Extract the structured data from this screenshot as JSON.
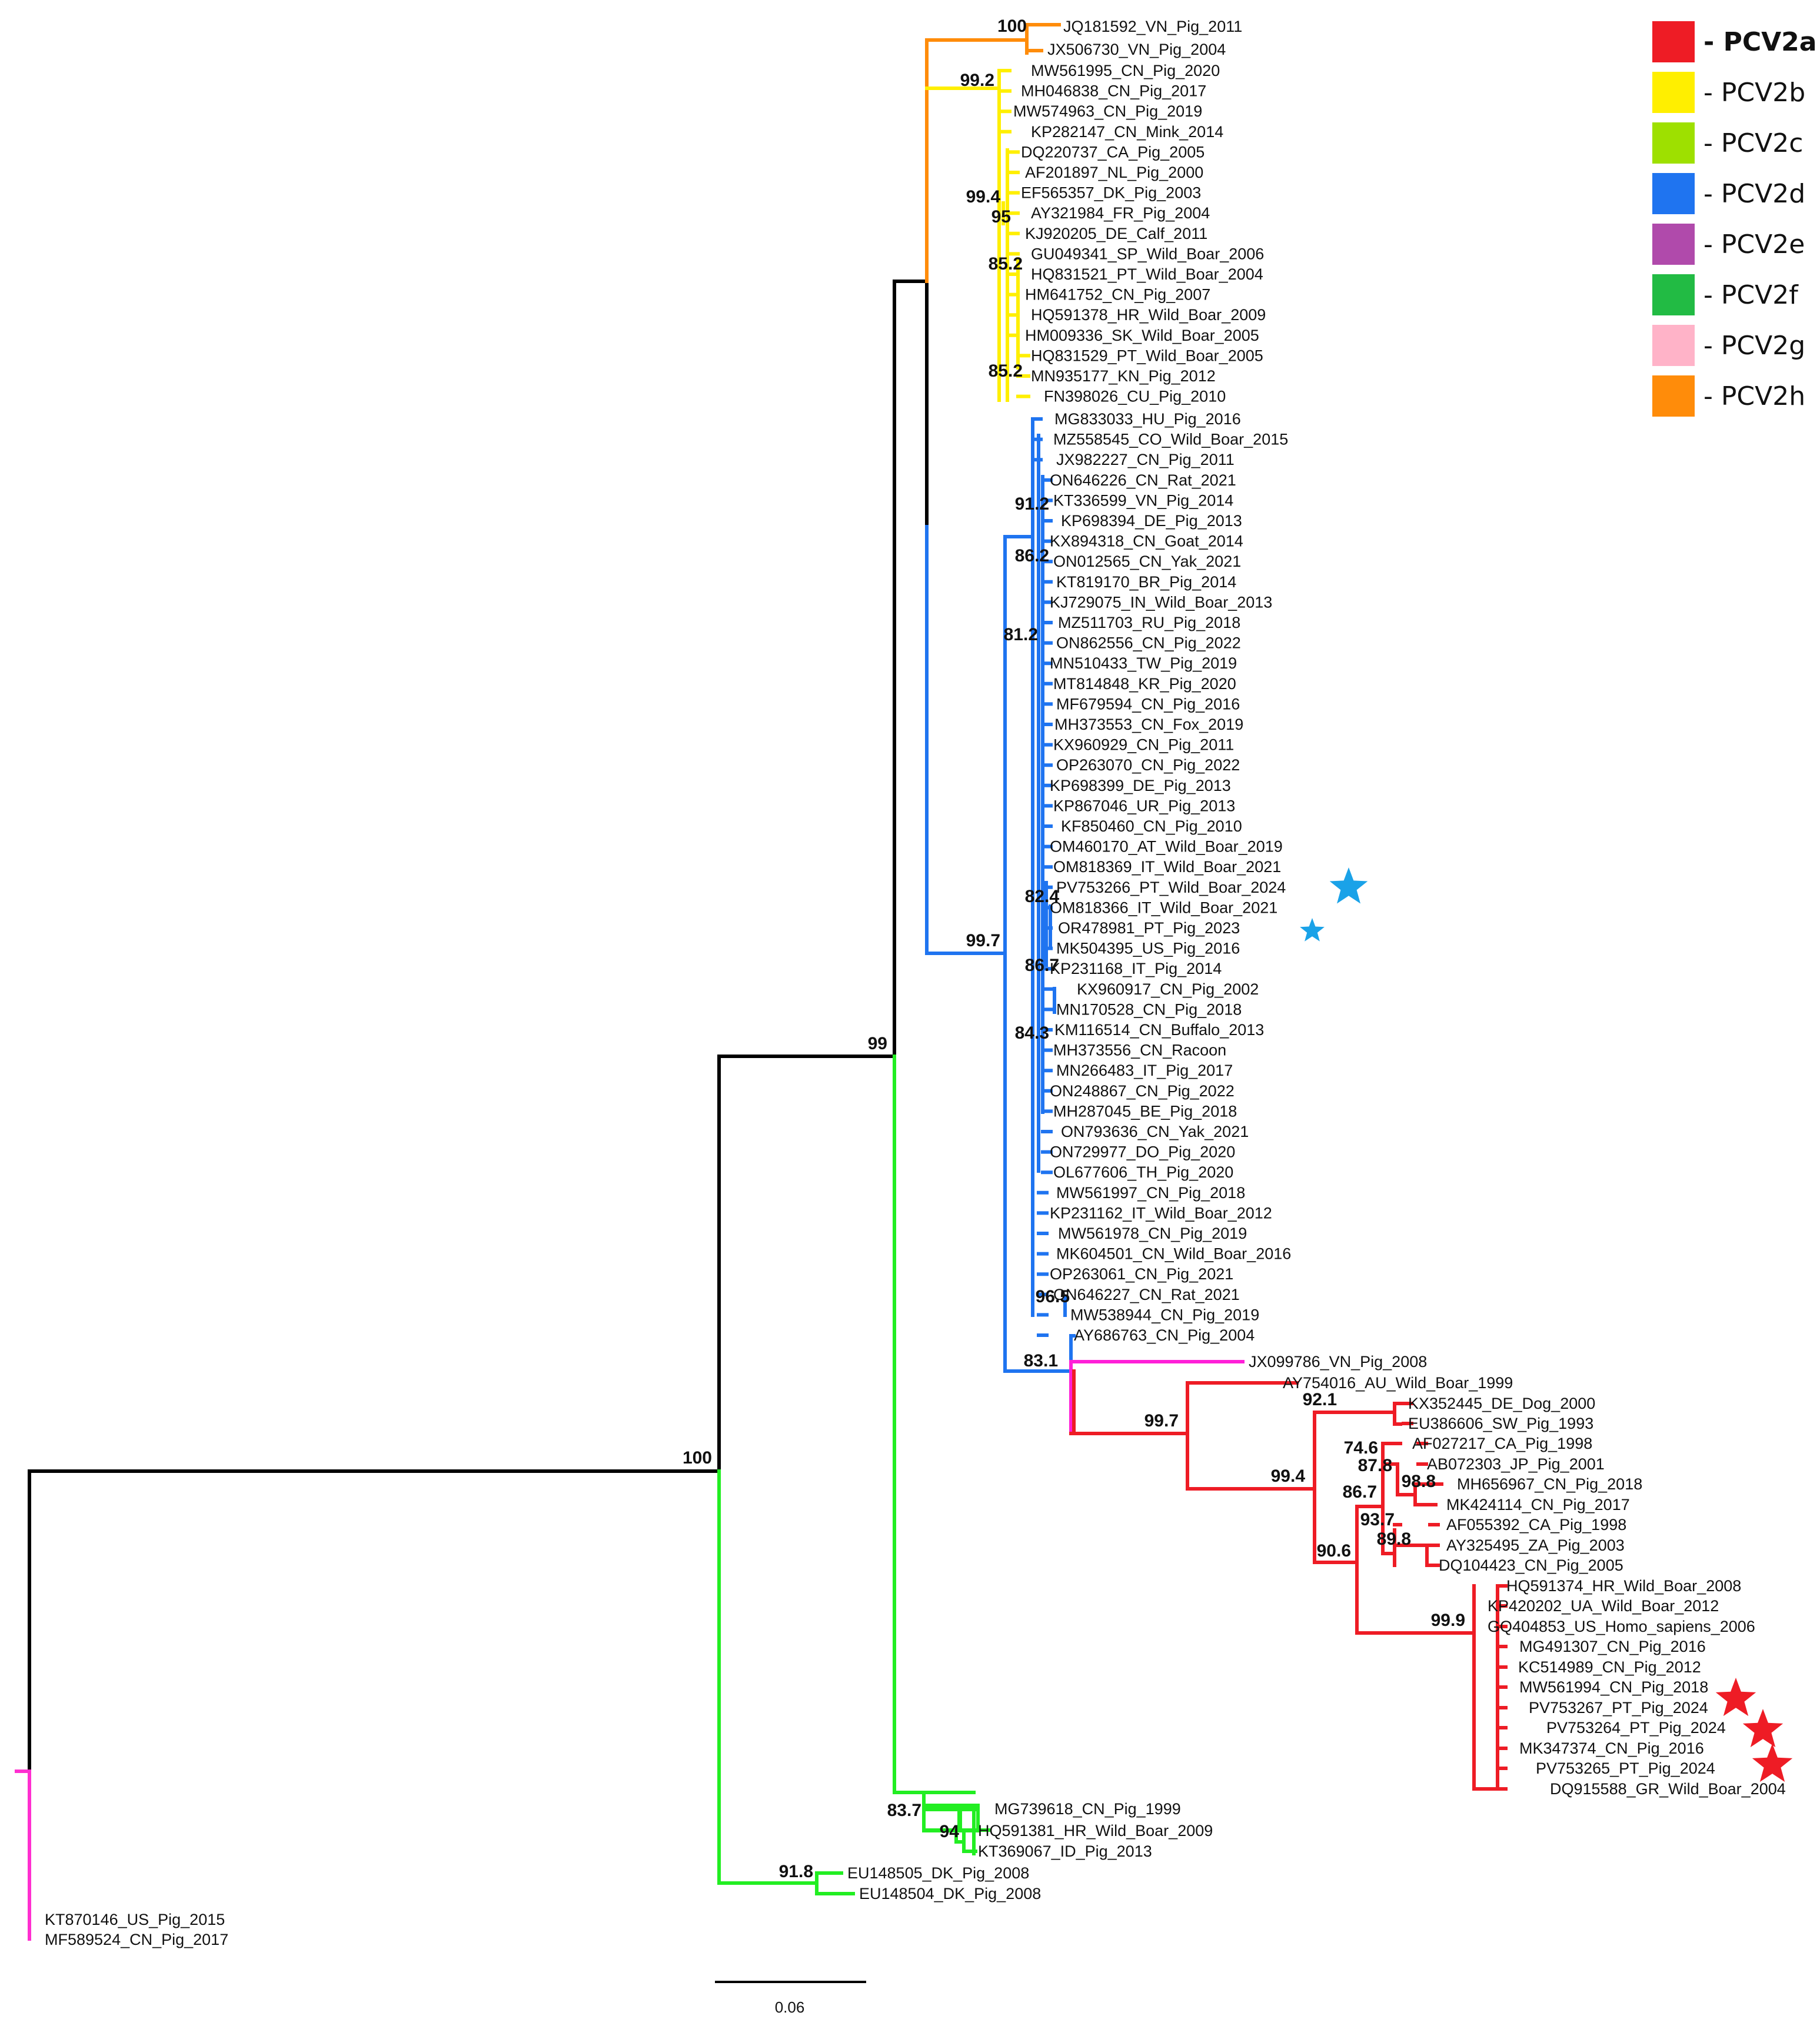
{
  "colors": {
    "PCV2a": "#ee1c25",
    "PCV2b": "#ffef00",
    "PCV2c": "#9ee000",
    "PCV2d": "#1f74f0",
    "PCV2e": "#b04aab",
    "PCV2f": "#22bb44",
    "PCV2g": "#ffb3c8",
    "PCV2h": "#ff8c0a",
    "JX099786": "#ff1fd8",
    "outgroup": "#ff2fd0",
    "f_clade": "#22ee22",
    "backbone": "#000000",
    "star_blue": "#1aa2e8",
    "star_red": "#ee1c25"
  },
  "legend": [
    {
      "key": "PCV2a",
      "label": "- PCV2a",
      "bold": true
    },
    {
      "key": "PCV2b",
      "label": "- PCV2b",
      "bold": false
    },
    {
      "key": "PCV2c",
      "label": "- PCV2c",
      "bold": false
    },
    {
      "key": "PCV2d",
      "label": "- PCV2d",
      "bold": false
    },
    {
      "key": "PCV2e",
      "label": "- PCV2e",
      "bold": false
    },
    {
      "key": "PCV2f",
      "label": "- PCV2f",
      "bold": false
    },
    {
      "key": "PCV2g",
      "label": "- PCV2g",
      "bold": false
    },
    {
      "key": "PCV2h",
      "label": "- PCV2h",
      "bold": false
    }
  ],
  "scale_bar": {
    "label": "0.06"
  },
  "clades": {
    "h": [
      "JQ181592_VN_Pig_2011",
      "JX506730_VN_Pig_2004"
    ],
    "b": [
      "MW561995_CN_Pig_2020",
      "MH046838_CN_Pig_2017",
      "MW574963_CN_Pig_2019",
      "KP282147_CN_Mink_2014",
      "DQ220737_CA_Pig_2005",
      "AF201897_NL_Pig_2000",
      "EF565357_DK_Pig_2003",
      "AY321984_FR_Pig_2004",
      "KJ920205_DE_Calf_2011",
      "GU049341_SP_Wild_Boar_2006",
      "HQ831521_PT_Wild_Boar_2004",
      "HM641752_CN_Pig_2007",
      "HQ591378_HR_Wild_Boar_2009",
      "HM009336_SK_Wild_Boar_2005",
      "HQ831529_PT_Wild_Boar_2005",
      "MN935177_KN_Pig_2012",
      "FN398026_CU_Pig_2010"
    ],
    "d": [
      "MG833033_HU_Pig_2016",
      "MZ558545_CO_Wild_Boar_2015",
      "JX982227_CN_Pig_2011",
      "ON646226_CN_Rat_2021",
      "KT336599_VN_Pig_2014",
      "KP698394_DE_Pig_2013",
      "KX894318_CN_Goat_2014",
      "ON012565_CN_Yak_2021",
      "KT819170_BR_Pig_2014",
      "KJ729075_IN_Wild_Boar_2013",
      "MZ511703_RU_Pig_2018",
      "ON862556_CN_Pig_2022",
      "MN510433_TW_Pig_2019",
      "MT814848_KR_Pig_2020",
      "MF679594_CN_Pig_2016",
      "MH373553_CN_Fox_2019",
      "KX960929_CN_Pig_2011",
      "OP263070_CN_Pig_2022",
      "KP698399_DE_Pig_2013",
      "KP867046_UR_Pig_2013",
      "KF850460_CN_Pig_2010",
      "OM460170_AT_Wild_Boar_2019",
      "OM818369_IT_Wild_Boar_2021",
      "PV753266_PT_Wild_Boar_2024",
      "OM818366_IT_Wild_Boar_2021",
      "OR478981_PT_Pig_2023",
      "MK504395_US_Pig_2016",
      "KP231168_IT_Pig_2014",
      "KX960917_CN_Pig_2002",
      "MN170528_CN_Pig_2018",
      "KM116514_CN_Buffalo_2013",
      "MH373556_CN_Racoon",
      "MN266483_IT_Pig_2017",
      "ON248867_CN_Pig_2022",
      "MH287045_BE_Pig_2018",
      "ON793636_CN_Yak_2021",
      "ON729977_DO_Pig_2020",
      "OL677606_TH_Pig_2020",
      "MW561997_CN_Pig_2018",
      "KP231162_IT_Wild_Boar_2012",
      "MW561978_CN_Pig_2019",
      "MK604501_CN_Wild_Boar_2016",
      "OP263061_CN_Pig_2021",
      "ON646227_CN_Rat_2021",
      "MW538944_CN_Pig_2019",
      "AY686763_CN_Pig_2004"
    ],
    "e_like": [
      "JX099786_VN_Pig_2008"
    ],
    "a": [
      "AY754016_AU_Wild_Boar_1999",
      "KX352445_DE_Dog_2000",
      "EU386606_SW_Pig_1993",
      "AF027217_CA_Pig_1998",
      "AB072303_JP_Pig_2001",
      "MH656967_CN_Pig_2018",
      "MK424114_CN_Pig_2017",
      "AF055392_CA_Pig_1998",
      "AY325495_ZA_Pig_2003",
      "DQ104423_CN_Pig_2005",
      "HQ591374_HR_Wild_Boar_2008",
      "KP420202_UA_Wild_Boar_2012",
      "GQ404853_US_Homo_sapiens_2006",
      "MG491307_CN_Pig_2016",
      "KC514989_CN_Pig_2012",
      "MW561994_CN_Pig_2018",
      "PV753267_PT_Pig_2024",
      "PV753264_PT_Pig_2024",
      "MK347374_CN_Pig_2016",
      "PV753265_PT_Pig_2024",
      "DQ915588_GR_Wild_Boar_2004"
    ],
    "f": [
      "MG739618_CN_Pig_1999",
      "HQ591381_HR_Wild_Boar_2009",
      "KT369067_ID_Pig_2013",
      "EU148505_DK_Pig_2008",
      "EU148504_DK_Pig_2008"
    ],
    "outgroup": [
      "KT870146_US_Pig_2015",
      "MF589524_CN_Pig_2017"
    ]
  },
  "bootstrap": [
    "100",
    "99.2",
    "99.4",
    "95",
    "85.2",
    "85.2",
    "91.2",
    "86.2",
    "81.2",
    "82.4",
    "99.7",
    "86.7",
    "84.3",
    "96.5",
    "83.1",
    "99.7",
    "92.1",
    "74.6",
    "87.8",
    "98.8",
    "99.4",
    "86.7",
    "93.7",
    "89.8",
    "90.6",
    "99.9",
    "99",
    "100",
    "83.7",
    "94",
    "91.8"
  ]
}
